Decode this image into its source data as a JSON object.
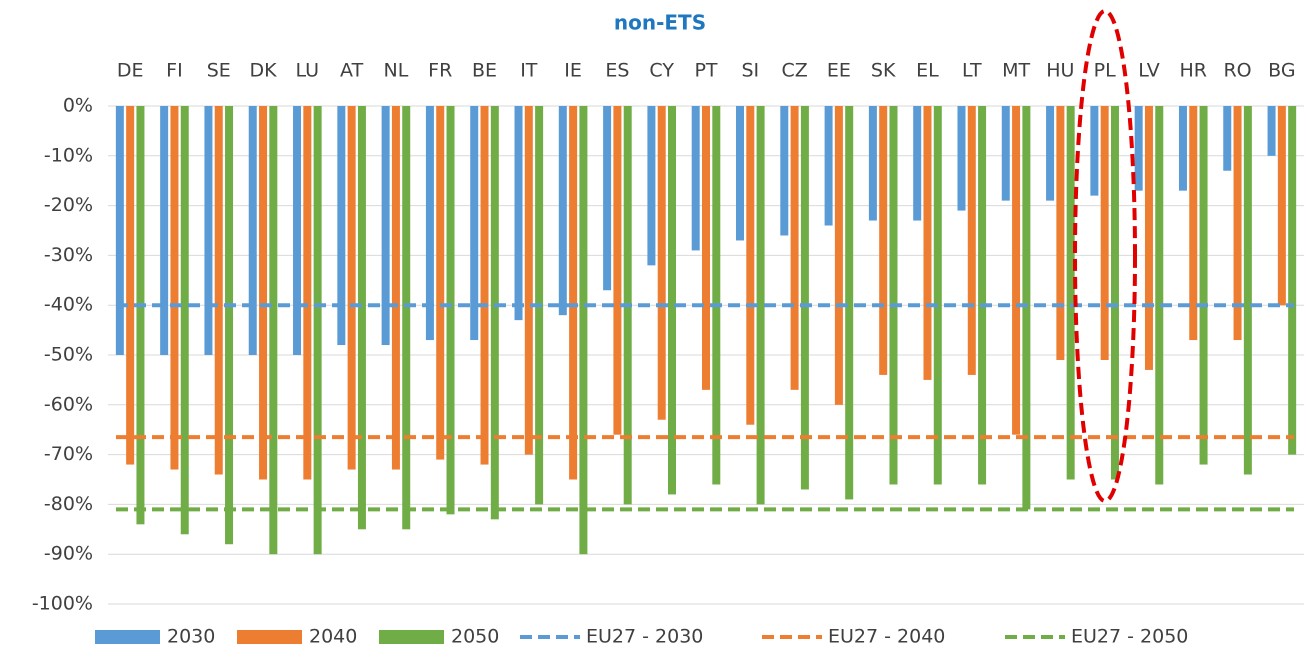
{
  "chart_data": {
    "type": "bar",
    "title": "non-ETS",
    "categories": [
      "DE",
      "FI",
      "SE",
      "DK",
      "LU",
      "AT",
      "NL",
      "FR",
      "BE",
      "IT",
      "IE",
      "ES",
      "CY",
      "PT",
      "SI",
      "CZ",
      "EE",
      "SK",
      "EL",
      "LT",
      "MT",
      "HU",
      "PL",
      "LV",
      "HR",
      "RO",
      "BG"
    ],
    "series": [
      {
        "name": "2030",
        "color": "#5b9bd5",
        "values": [
          -50,
          -50,
          -50,
          -50,
          -50,
          -48,
          -48,
          -47,
          -47,
          -43,
          -42,
          -37,
          -32,
          -29,
          -27,
          -26,
          -24,
          -23,
          -23,
          -21,
          -19,
          -19,
          -18,
          -17,
          -17,
          -13,
          -10
        ]
      },
      {
        "name": "2040",
        "color": "#ed7d31",
        "values": [
          -72,
          -73,
          -74,
          -75,
          -75,
          -73,
          -73,
          -71,
          -72,
          -70,
          -75,
          -66,
          -63,
          -57,
          -64,
          -57,
          -60,
          -54,
          -55,
          -54,
          -66,
          -51,
          -51,
          -53,
          -47,
          -47,
          -40
        ]
      },
      {
        "name": "2050",
        "color": "#70ad47",
        "values": [
          -84,
          -86,
          -88,
          -90,
          -90,
          -85,
          -85,
          -82,
          -83,
          -80,
          -90,
          -80,
          -78,
          -76,
          -80,
          -77,
          -79,
          -76,
          -76,
          -76,
          -81,
          -75,
          -75,
          -76,
          -72,
          -74,
          -70
        ]
      }
    ],
    "reference_lines": [
      {
        "name": "EU27 - 2030",
        "color": "#5b9bd5",
        "value": -40
      },
      {
        "name": "EU27 - 2040",
        "color": "#ed7d31",
        "value": -66.5
      },
      {
        "name": "EU27 - 2050",
        "color": "#70ad47",
        "value": -81
      }
    ],
    "ylim": [
      -100,
      0
    ],
    "yticks": [
      {
        "value": 0,
        "label": "0%"
      },
      {
        "value": -10,
        "label": "-10%"
      },
      {
        "value": -20,
        "label": "-20%"
      },
      {
        "value": -30,
        "label": "-30%"
      },
      {
        "value": -40,
        "label": "-40%"
      },
      {
        "value": -50,
        "label": "-50%"
      },
      {
        "value": -60,
        "label": "-60%"
      },
      {
        "value": -70,
        "label": "-70%"
      },
      {
        "value": -80,
        "label": "-80%"
      },
      {
        "value": -90,
        "label": "-90%"
      },
      {
        "value": -100,
        "label": "-100%"
      }
    ],
    "grid": true
  }
}
